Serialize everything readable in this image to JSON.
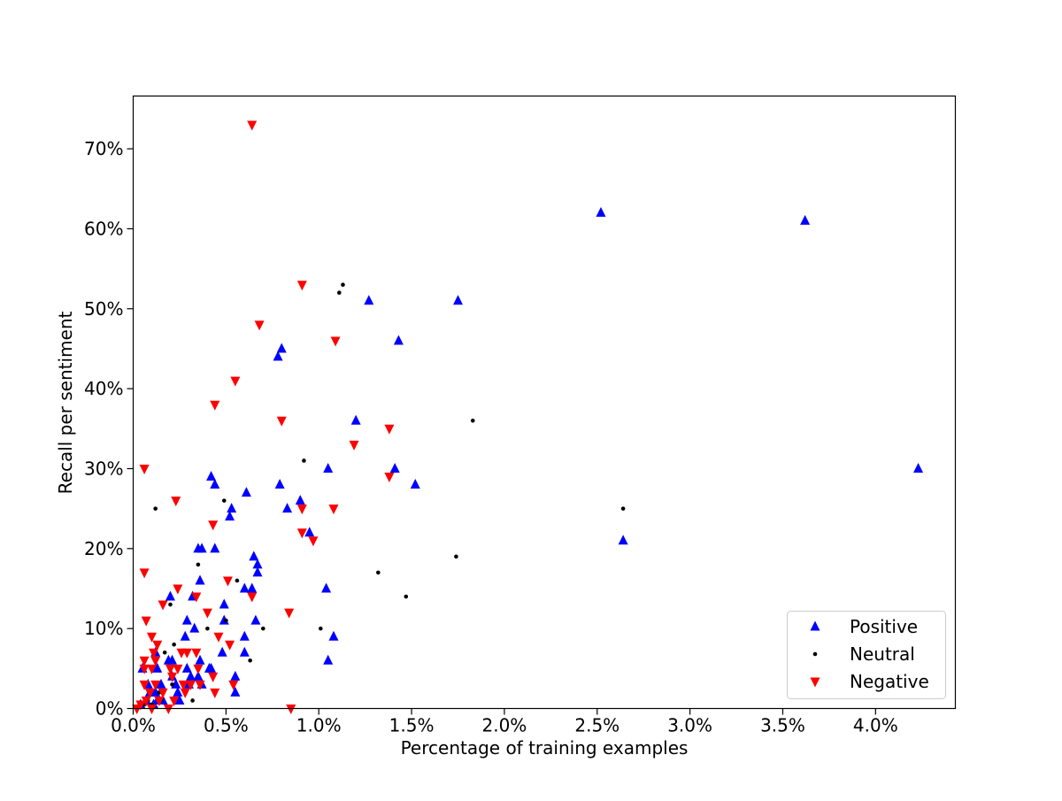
{
  "chart_data": {
    "type": "scatter",
    "title": "",
    "xlabel": "Percentage of training examples",
    "ylabel": "Recall per sentiment",
    "xlim": [
      0,
      4.43
    ],
    "ylim": [
      0,
      76.6
    ],
    "x_unit": "%",
    "y_unit": "%",
    "grid": false,
    "legend_position": "lower-right",
    "x_ticks": [
      0,
      0.5,
      1.0,
      1.5,
      2.0,
      2.5,
      3.0,
      3.5,
      4.0
    ],
    "x_tick_labels": [
      "0.0%",
      "0.5%",
      "1.0%",
      "1.5%",
      "2.0%",
      "2.5%",
      "3.0%",
      "3.5%",
      "4.0%"
    ],
    "y_ticks": [
      0,
      10,
      20,
      30,
      40,
      50,
      60,
      70
    ],
    "y_tick_labels": [
      "0%",
      "10%",
      "20%",
      "30%",
      "40%",
      "50%",
      "60%",
      "70%"
    ],
    "series": [
      {
        "name": "Positive",
        "color": "#0000ff",
        "marker": "triangle-up",
        "points": [
          [
            2.52,
            62
          ],
          [
            3.62,
            61
          ],
          [
            4.23,
            30
          ],
          [
            2.64,
            21
          ],
          [
            1.75,
            51
          ],
          [
            1.27,
            51
          ],
          [
            1.43,
            46
          ],
          [
            1.2,
            36
          ],
          [
            1.41,
            30
          ],
          [
            1.52,
            28
          ],
          [
            1.05,
            30
          ],
          [
            0.8,
            45
          ],
          [
            0.78,
            44
          ],
          [
            0.79,
            28
          ],
          [
            0.83,
            25
          ],
          [
            0.9,
            26
          ],
          [
            0.95,
            22
          ],
          [
            1.04,
            15
          ],
          [
            1.08,
            9
          ],
          [
            1.05,
            6
          ],
          [
            0.61,
            27
          ],
          [
            0.65,
            19
          ],
          [
            0.67,
            18
          ],
          [
            0.67,
            17
          ],
          [
            0.64,
            15
          ],
          [
            0.6,
            15
          ],
          [
            0.66,
            11
          ],
          [
            0.6,
            9
          ],
          [
            0.6,
            7
          ],
          [
            0.55,
            4
          ],
          [
            0.55,
            2
          ],
          [
            0.53,
            25
          ],
          [
            0.52,
            24
          ],
          [
            0.49,
            13
          ],
          [
            0.49,
            11
          ],
          [
            0.48,
            7
          ],
          [
            0.42,
            29
          ],
          [
            0.44,
            28
          ],
          [
            0.44,
            20
          ],
          [
            0.37,
            20
          ],
          [
            0.35,
            20
          ],
          [
            0.36,
            16
          ],
          [
            0.42,
            5
          ],
          [
            0.41,
            5
          ],
          [
            0.36,
            6
          ],
          [
            0.35,
            4
          ],
          [
            0.33,
            10
          ],
          [
            0.32,
            14
          ],
          [
            0.29,
            11
          ],
          [
            0.28,
            9
          ],
          [
            0.29,
            5
          ],
          [
            0.31,
            4
          ],
          [
            0.3,
            3
          ],
          [
            0.2,
            14
          ],
          [
            0.19,
            6
          ],
          [
            0.21,
            6
          ],
          [
            0.21,
            4
          ],
          [
            0.23,
            3
          ],
          [
            0.25,
            1
          ],
          [
            0.13,
            5
          ],
          [
            0.12,
            7
          ],
          [
            0.15,
            3
          ],
          [
            0.12,
            2
          ],
          [
            0.13,
            1
          ],
          [
            0.08,
            3
          ],
          [
            0.09,
            2
          ],
          [
            0.07,
            1
          ],
          [
            0.05,
            5
          ],
          [
            0.04,
            0.5
          ],
          [
            0.16,
            1
          ],
          [
            0.11,
            0.5
          ],
          [
            0.37,
            3
          ],
          [
            0.24,
            2
          ]
        ]
      },
      {
        "name": "Neutral",
        "color": "#000000",
        "marker": "dot",
        "points": [
          [
            1.13,
            53
          ],
          [
            1.11,
            52
          ],
          [
            1.83,
            36
          ],
          [
            0.92,
            31
          ],
          [
            2.64,
            25
          ],
          [
            1.74,
            19
          ],
          [
            1.32,
            17
          ],
          [
            1.47,
            14
          ],
          [
            1.01,
            10
          ],
          [
            0.7,
            10
          ],
          [
            0.63,
            6
          ],
          [
            0.56,
            16
          ],
          [
            0.49,
            26
          ],
          [
            0.5,
            11
          ],
          [
            0.4,
            10
          ],
          [
            0.35,
            18
          ],
          [
            0.12,
            25
          ],
          [
            0.2,
            13
          ],
          [
            0.17,
            7
          ],
          [
            0.22,
            8
          ],
          [
            0.2,
            5
          ],
          [
            0.21,
            3
          ],
          [
            0.32,
            1
          ],
          [
            0.14,
            2
          ],
          [
            0.15,
            1
          ],
          [
            0.1,
            0.5
          ],
          [
            0.08,
            1
          ],
          [
            0.06,
            0.5
          ]
        ]
      },
      {
        "name": "Negative",
        "color": "#ff0000",
        "marker": "triangle-down",
        "points": [
          [
            0.64,
            73
          ],
          [
            0.91,
            53
          ],
          [
            0.68,
            48
          ],
          [
            1.09,
            46
          ],
          [
            0.55,
            41
          ],
          [
            0.44,
            38
          ],
          [
            0.8,
            36
          ],
          [
            1.38,
            35
          ],
          [
            1.19,
            33
          ],
          [
            1.38,
            29
          ],
          [
            0.06,
            30
          ],
          [
            0.23,
            26
          ],
          [
            0.91,
            25
          ],
          [
            1.08,
            25
          ],
          [
            0.43,
            23
          ],
          [
            0.91,
            22
          ],
          [
            0.97,
            21
          ],
          [
            0.06,
            17
          ],
          [
            0.51,
            16
          ],
          [
            0.24,
            15
          ],
          [
            0.64,
            14
          ],
          [
            0.34,
            14
          ],
          [
            0.16,
            13
          ],
          [
            0.4,
            12
          ],
          [
            0.84,
            12
          ],
          [
            0.07,
            11
          ],
          [
            0.46,
            9
          ],
          [
            0.1,
            9
          ],
          [
            0.13,
            8
          ],
          [
            0.52,
            8
          ],
          [
            0.11,
            7
          ],
          [
            0.26,
            7
          ],
          [
            0.29,
            7
          ],
          [
            0.34,
            7
          ],
          [
            0.12,
            6
          ],
          [
            0.06,
            6
          ],
          [
            0.06,
            5
          ],
          [
            0.1,
            5
          ],
          [
            0.2,
            5
          ],
          [
            0.24,
            5
          ],
          [
            0.35,
            5
          ],
          [
            0.43,
            4
          ],
          [
            0.21,
            4
          ],
          [
            0.31,
            3
          ],
          [
            0.36,
            3
          ],
          [
            0.54,
            3
          ],
          [
            0.12,
            3
          ],
          [
            0.06,
            3
          ],
          [
            0.28,
            2
          ],
          [
            0.44,
            2
          ],
          [
            0.16,
            2
          ],
          [
            0.09,
            2
          ],
          [
            0.14,
            1
          ],
          [
            0.22,
            1
          ],
          [
            0.07,
            1
          ],
          [
            0.02,
            0
          ],
          [
            0.1,
            0
          ],
          [
            0.85,
            0
          ],
          [
            0.19,
            0
          ],
          [
            0.04,
            0.5
          ],
          [
            0.27,
            3
          ]
        ]
      }
    ]
  }
}
